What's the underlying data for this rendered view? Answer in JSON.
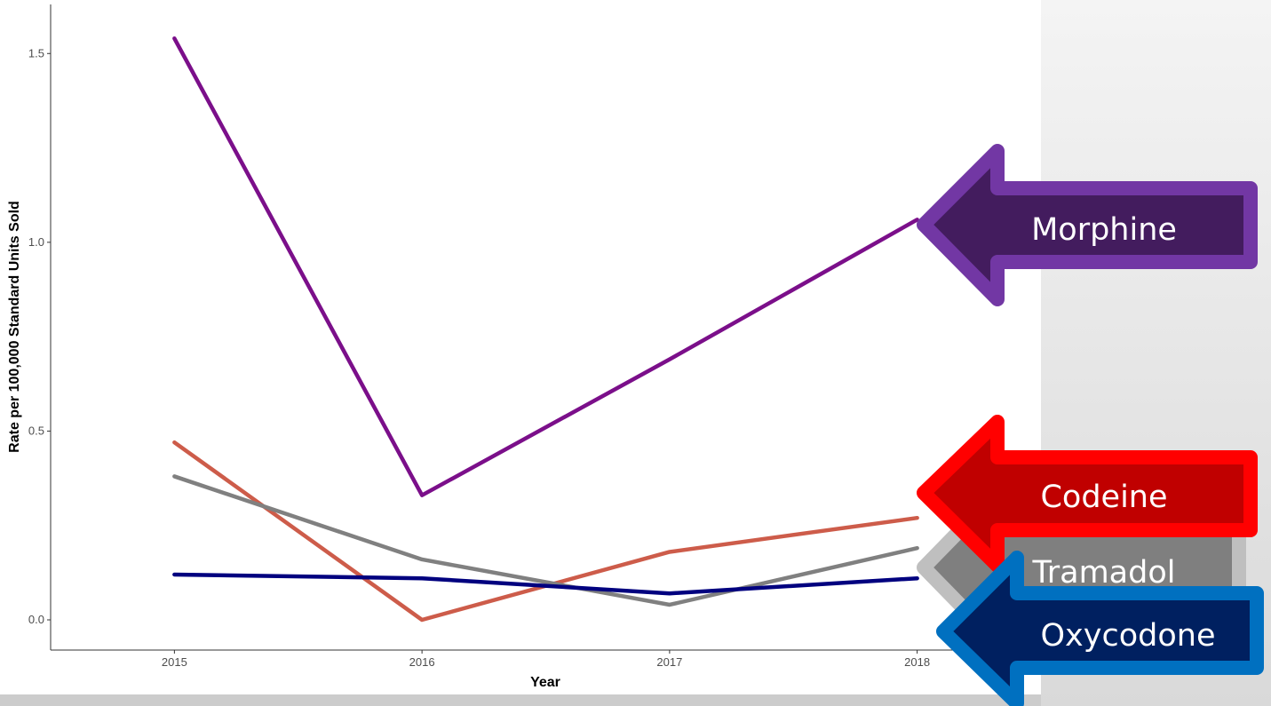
{
  "chart_data": {
    "type": "line",
    "title": "",
    "xlabel": "Year",
    "ylabel": "Rate per 100,000 Standard Units Sold",
    "x": [
      2015,
      2016,
      2017,
      2018
    ],
    "xlim": [
      2014.5,
      2018.5
    ],
    "ylim": [
      -0.08,
      1.63
    ],
    "x_ticks": [
      2015,
      2016,
      2017,
      2018
    ],
    "y_ticks": [
      0.0,
      0.5,
      1.0,
      1.5
    ],
    "x_tick_labels": [
      "2015",
      "2016",
      "2017",
      "2018"
    ],
    "y_tick_labels": [
      "0.0",
      "0.5",
      "1.0",
      "1.5"
    ],
    "grid": false,
    "legend": "none",
    "series": [
      {
        "name": "Morphine",
        "color": "#7b0f8a",
        "values": [
          1.54,
          0.33,
          0.69,
          1.06
        ]
      },
      {
        "name": "Codeine",
        "color": "#cd5c4a",
        "values": [
          0.47,
          0.0,
          0.18,
          0.27
        ]
      },
      {
        "name": "Tramadol",
        "color": "#808080",
        "values": [
          0.38,
          0.16,
          0.04,
          0.19
        ]
      },
      {
        "name": "Oxycodone",
        "color": "#00007f",
        "values": [
          0.12,
          0.11,
          0.07,
          0.11
        ]
      }
    ]
  },
  "callouts": [
    {
      "label": "Morphine",
      "fill": "#431c5e",
      "border": "#7237a4"
    },
    {
      "label": "Codeine",
      "fill": "#c00000",
      "border": "#ff0000"
    },
    {
      "label": "Tramadol",
      "fill": "#7f7f7f",
      "border": "#bfbfbf"
    },
    {
      "label": "Oxycodone",
      "fill": "#002060",
      "border": "#0070c0"
    }
  ],
  "colors": {
    "background_panel": "#e7e7e7",
    "bottom_band": "#cccccc",
    "axis_line": "#333333"
  }
}
